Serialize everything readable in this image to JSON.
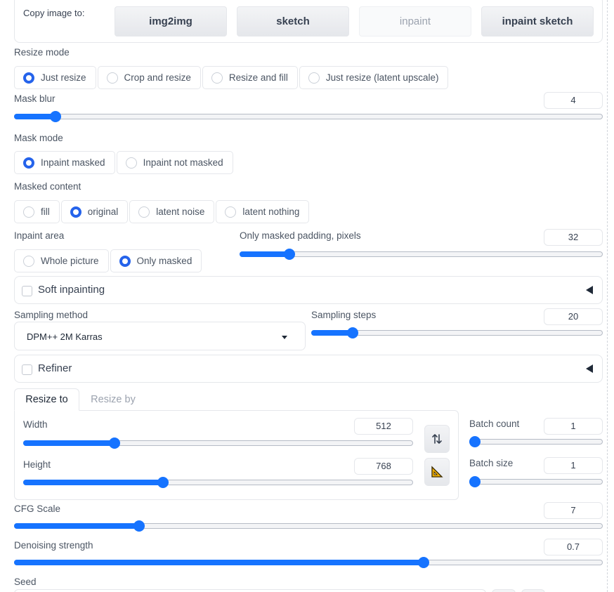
{
  "copy_image": {
    "label": "Copy image to:",
    "buttons": [
      "img2img",
      "sketch",
      "inpaint",
      "inpaint sketch"
    ]
  },
  "resize_mode": {
    "label": "Resize mode",
    "options": [
      "Just resize",
      "Crop and resize",
      "Resize and fill",
      "Just resize (latent upscale)"
    ],
    "selected": "Just resize"
  },
  "mask_blur": {
    "label": "Mask blur",
    "value": "4",
    "min": 0,
    "max": 64
  },
  "mask_mode": {
    "label": "Mask mode",
    "options": [
      "Inpaint masked",
      "Inpaint not masked"
    ],
    "selected": "Inpaint masked"
  },
  "masked_content": {
    "label": "Masked content",
    "options": [
      "fill",
      "original",
      "latent noise",
      "latent nothing"
    ],
    "selected": "original"
  },
  "inpaint_area": {
    "label": "Inpaint area",
    "options": [
      "Whole picture",
      "Only masked"
    ],
    "selected": "Only masked"
  },
  "only_masked_padding": {
    "label": "Only masked padding, pixels",
    "value": "32",
    "min": 0,
    "max": 256
  },
  "soft_inpainting": {
    "label": "Soft inpainting"
  },
  "sampling_method": {
    "label": "Sampling method",
    "value": "DPM++ 2M Karras"
  },
  "sampling_steps": {
    "label": "Sampling steps",
    "value": "20",
    "min": 1,
    "max": 150
  },
  "refiner": {
    "label": "Refiner"
  },
  "resize_tabs": [
    "Resize to",
    "Resize by"
  ],
  "width": {
    "label": "Width",
    "value": "512",
    "min": 64,
    "max": 2048
  },
  "height": {
    "label": "Height",
    "value": "768",
    "min": 64,
    "max": 2048
  },
  "batch_count": {
    "label": "Batch count",
    "value": "1",
    "min": 1,
    "max": 100
  },
  "batch_size": {
    "label": "Batch size",
    "value": "1",
    "min": 1,
    "max": 8
  },
  "cfg_scale": {
    "label": "CFG Scale",
    "value": "7",
    "min": 1,
    "max": 30
  },
  "denoising_strength": {
    "label": "Denoising strength",
    "value": "0.7",
    "min": 0,
    "max": 1
  },
  "seed": {
    "label": "Seed"
  },
  "icons": {
    "swap": "swap-dimensions-icon",
    "ratio": "triangle-ruler-icon"
  },
  "colors": {
    "accent": "#1673ff",
    "radio_selected": "#2563eb",
    "text": "#374151",
    "border": "#e5e7eb"
  }
}
